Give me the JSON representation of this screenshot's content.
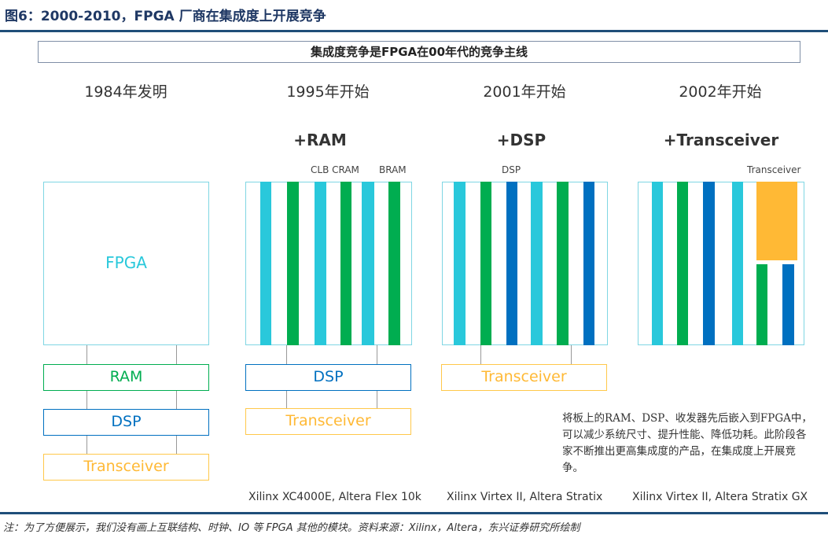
{
  "title": "图6：2000-2010，FPGA 厂商在集成度上开展竞争",
  "banner": "集成度竞争是FPGA在00年代的竞争主线",
  "colors": {
    "clb": "#29c8db",
    "bram": "#00ad50",
    "dsp": "#0070c0",
    "transceiver": "#ffb935",
    "ram_border": "#00ad50",
    "dsp_border": "#0070c0",
    "trans_border": "#ffc84a"
  },
  "columns": [
    {
      "year": "1984年发明",
      "plus": "",
      "chip_label": "FPGA",
      "blocks": [
        "RAM",
        "DSP",
        "Transceiver"
      ],
      "vendors": ""
    },
    {
      "year": "1995年开始",
      "plus": "+RAM",
      "labels": [
        "CLB CRAM",
        "BRAM"
      ],
      "blocks": [
        "DSP",
        "Transceiver"
      ],
      "vendors": "Xilinx XC4000E, Altera Flex 10k"
    },
    {
      "year": "2001年开始",
      "plus": "+DSP",
      "labels": [
        "DSP"
      ],
      "blocks": [
        "Transceiver"
      ],
      "vendors": "Xilinx Virtex II, Altera Stratix"
    },
    {
      "year": "2002年开始",
      "plus": "+Transceiver",
      "labels": [
        "Transceiver"
      ],
      "blocks": [],
      "vendors": "Xilinx Virtex II, Altera Stratix GX"
    }
  ],
  "description": "将板上的RAM、DSP、收发器先后嵌入到FPGA中，可以减少系统尺寸、提升性能、降低功耗。此阶段各家不断推出更高集成度的产品，在集成度上开展竞争。",
  "note": "注：为了方便展示，我们没有画上互联结构、时钟、IO 等 FPGA 其他的模块。资料来源：Xilinx，Altera，东兴证券研究所绘制"
}
